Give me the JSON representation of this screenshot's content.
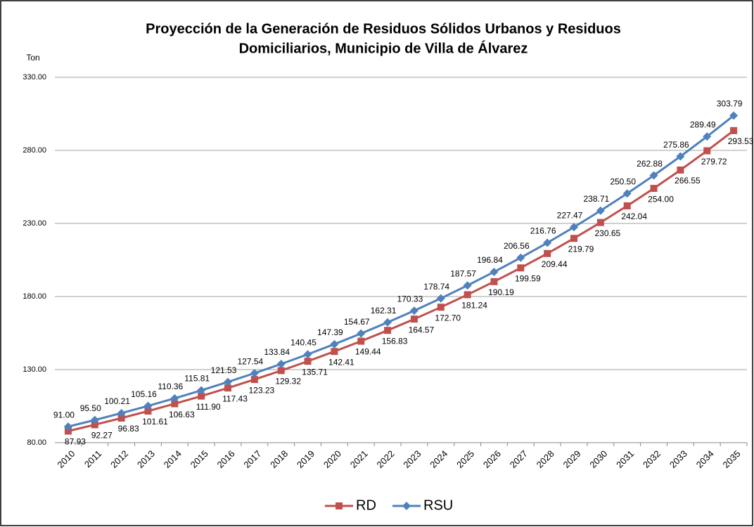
{
  "chart_data": {
    "type": "line",
    "title": [
      "Proyección de la Generación de Residuos Sólidos Urbanos y Residuos",
      "Domiciliarios, Municipio de Villa de Álvarez"
    ],
    "y_label": "Ton",
    "categories": [
      "2010",
      "2011",
      "2012",
      "2013",
      "2014",
      "2015",
      "2016",
      "2017",
      "2018",
      "2019",
      "2020",
      "2021",
      "2022",
      "2023",
      "2024",
      "2025",
      "2026",
      "2027",
      "2028",
      "2029",
      "2030",
      "2031",
      "2032",
      "2033",
      "2034",
      "2035"
    ],
    "series": [
      {
        "name": "RD",
        "color": "#c0504d",
        "marker": "square",
        "values": [
          87.93,
          92.27,
          96.83,
          101.61,
          106.63,
          111.9,
          117.43,
          123.23,
          129.32,
          135.71,
          142.41,
          149.44,
          156.83,
          164.57,
          172.7,
          181.24,
          190.19,
          199.59,
          209.44,
          219.79,
          230.65,
          242.04,
          254,
          266.55,
          279.72,
          293.53
        ],
        "value_labels": [
          "87.93",
          "92.27",
          "96.83",
          "101.61",
          "106.63",
          "111.90",
          "117.43",
          "123.23",
          "129.32",
          "135.71",
          "142.41",
          "149.44",
          "156.83",
          "164.57",
          "172.70",
          "181.24",
          "190.19",
          "199.59",
          "209.44",
          "219.79",
          "230.65",
          "242.04",
          "254.00",
          "266.55",
          "279.72",
          "293.53"
        ]
      },
      {
        "name": "RSU",
        "color": "#4f81bd",
        "marker": "diamond",
        "values": [
          91,
          95.5,
          100.21,
          105.16,
          110.36,
          115.81,
          121.53,
          127.54,
          133.84,
          140.45,
          147.39,
          154.67,
          162.31,
          170.33,
          178.74,
          187.57,
          196.84,
          206.56,
          216.76,
          227.47,
          238.71,
          250.5,
          262.88,
          275.86,
          289.49,
          303.79
        ],
        "value_labels": [
          "91.00",
          "95.50",
          "100.21",
          "105.16",
          "110.36",
          "115.81",
          "121.53",
          "127.54",
          "133.84",
          "140.45",
          "147.39",
          "154.67",
          "162.31",
          "170.33",
          "178.74",
          "187.57",
          "196.84",
          "206.56",
          "216.76",
          "227.47",
          "238.71",
          "250.50",
          "262.88",
          "275.86",
          "289.49",
          "303.79"
        ]
      }
    ],
    "ylim": [
      80,
      330
    ],
    "yticks": [
      {
        "value": 80,
        "label": "80.00"
      },
      {
        "value": 130,
        "label": "130.00"
      },
      {
        "value": 180,
        "label": "180.00"
      },
      {
        "value": 230,
        "label": "230.00"
      },
      {
        "value": 280,
        "label": "280.00"
      },
      {
        "value": 330,
        "label": "330.00"
      }
    ],
    "grid": true,
    "legend": "bottom"
  }
}
